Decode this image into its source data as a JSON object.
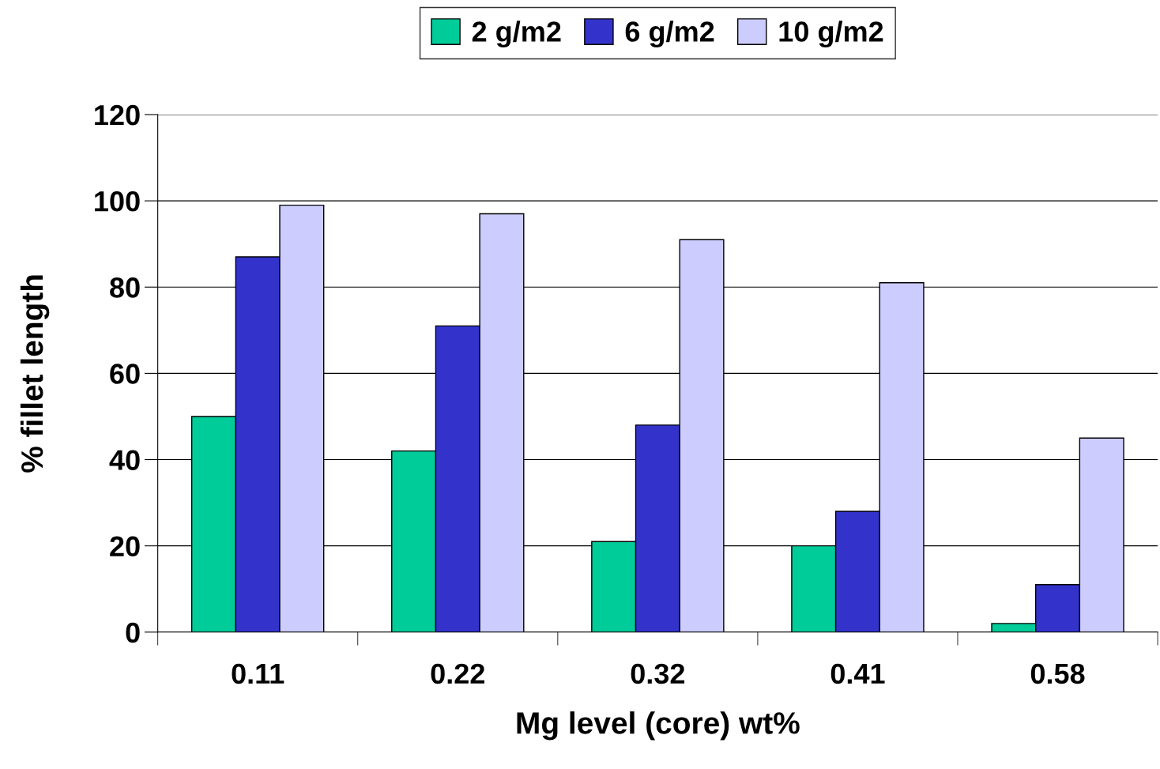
{
  "chart_data": {
    "type": "bar",
    "xlabel": "Mg level (core) wt%",
    "ylabel": "% fillet length",
    "categories": [
      "0.11",
      "0.22",
      "0.32",
      "0.41",
      "0.58"
    ],
    "series": [
      {
        "name": "2 g/m2",
        "color": "#00cc99",
        "values": [
          50,
          42,
          21,
          20,
          2
        ]
      },
      {
        "name": "6 g/m2",
        "color": "#3333cc",
        "values": [
          87,
          71,
          48,
          28,
          11
        ]
      },
      {
        "name": "10 g/m2",
        "color": "#ccccff",
        "values": [
          99,
          97,
          91,
          81,
          45
        ]
      }
    ],
    "ylim": [
      0,
      120
    ],
    "yticks": [
      0,
      20,
      40,
      60,
      80,
      100,
      120
    ],
    "grid": "y",
    "legend": "top"
  }
}
